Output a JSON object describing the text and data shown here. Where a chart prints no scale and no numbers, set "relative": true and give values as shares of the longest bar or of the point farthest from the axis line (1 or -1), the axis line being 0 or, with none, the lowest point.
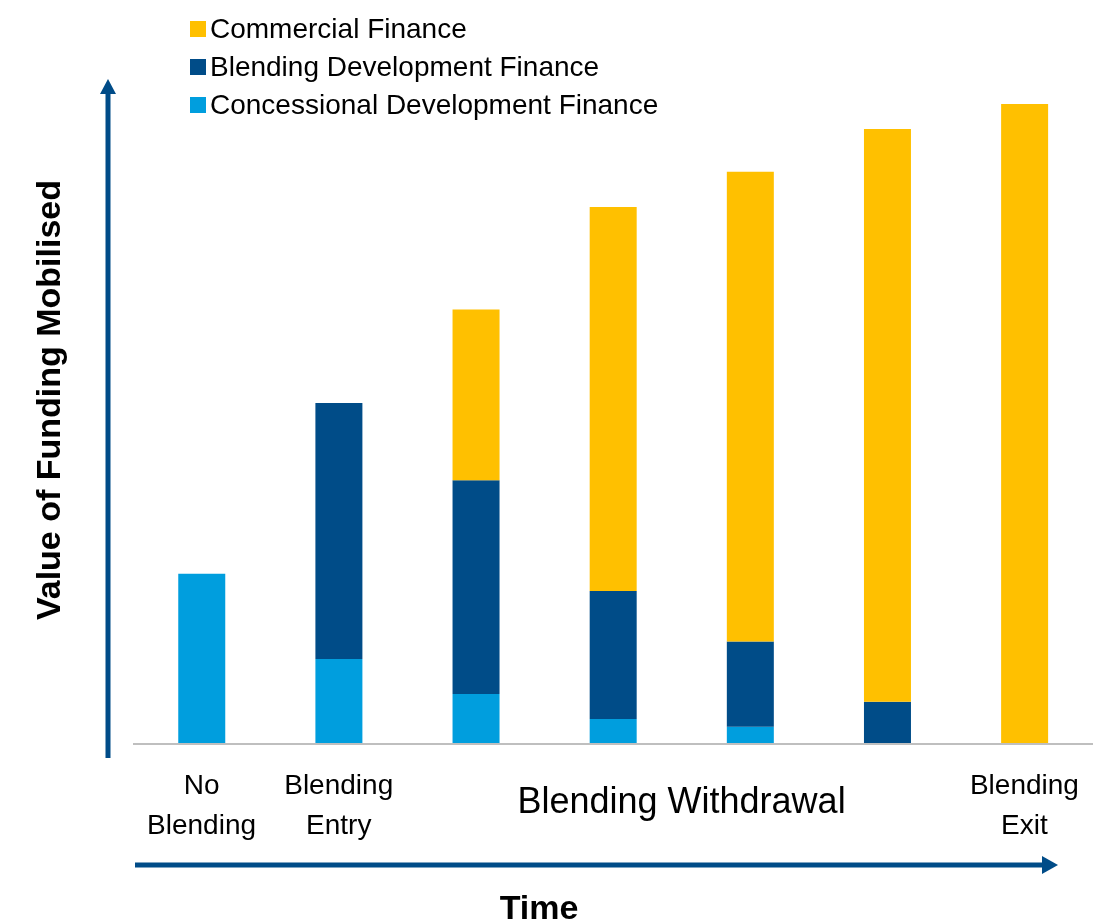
{
  "chart_data": {
    "type": "bar",
    "stacked": true,
    "relative": true,
    "xlabel": "Time",
    "ylabel": "Value of Funding Mobilised",
    "legend": "top left",
    "categories": [
      "No Blending",
      "Blending Entry",
      null,
      null,
      null,
      null,
      "Blending Exit"
    ],
    "annotations": [
      "Blending Withdrawal"
    ],
    "series": [
      {
        "name": "Concessional Development Finance",
        "color": "#009ede",
        "values": [
          0.266,
          0.133,
          0.078,
          0.039,
          0.027,
          0,
          0
        ]
      },
      {
        "name": "Blending Development Finance",
        "color": "#004c88",
        "values": [
          0,
          0.4,
          0.334,
          0.2,
          0.133,
          0.066,
          0
        ]
      },
      {
        "name": "Commercial Finance",
        "color": "#ffc000",
        "values": [
          0,
          0,
          0.267,
          0.6,
          0.734,
          0.895,
          1
        ]
      }
    ]
  }
}
